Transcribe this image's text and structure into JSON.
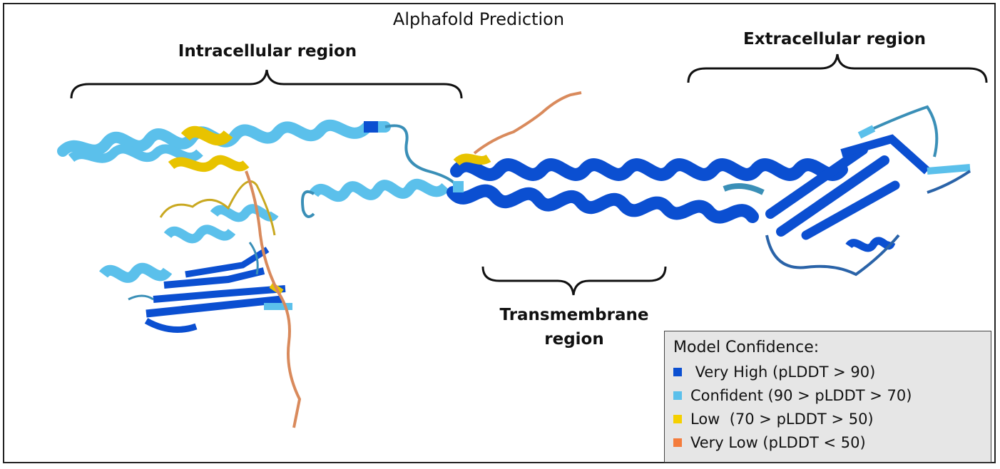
{
  "title": "Alphafold Prediction",
  "regions": {
    "intracellular": "Intracellular region",
    "extracellular": "Extracellular region",
    "transmembrane_line1": "Transmembrane",
    "transmembrane_line2": "region"
  },
  "legend": {
    "title": "Model Confidence:",
    "items": [
      {
        "label": " Very High (pLDDT > 90)",
        "color": "#0b4fd1"
      },
      {
        "label": "Confident (90 > pLDDT > 70)",
        "color": "#5bc0eb"
      },
      {
        "label": "Low  (70 > pLDDT > 50)",
        "color": "#f5d000"
      },
      {
        "label": "Very Low (pLDDT < 50)",
        "color": "#f47c3c"
      }
    ]
  },
  "colors": {
    "very_high": "#0b4fd1",
    "confident": "#5bc0eb",
    "low": "#e8c300",
    "very_low": "#d98a5c"
  }
}
